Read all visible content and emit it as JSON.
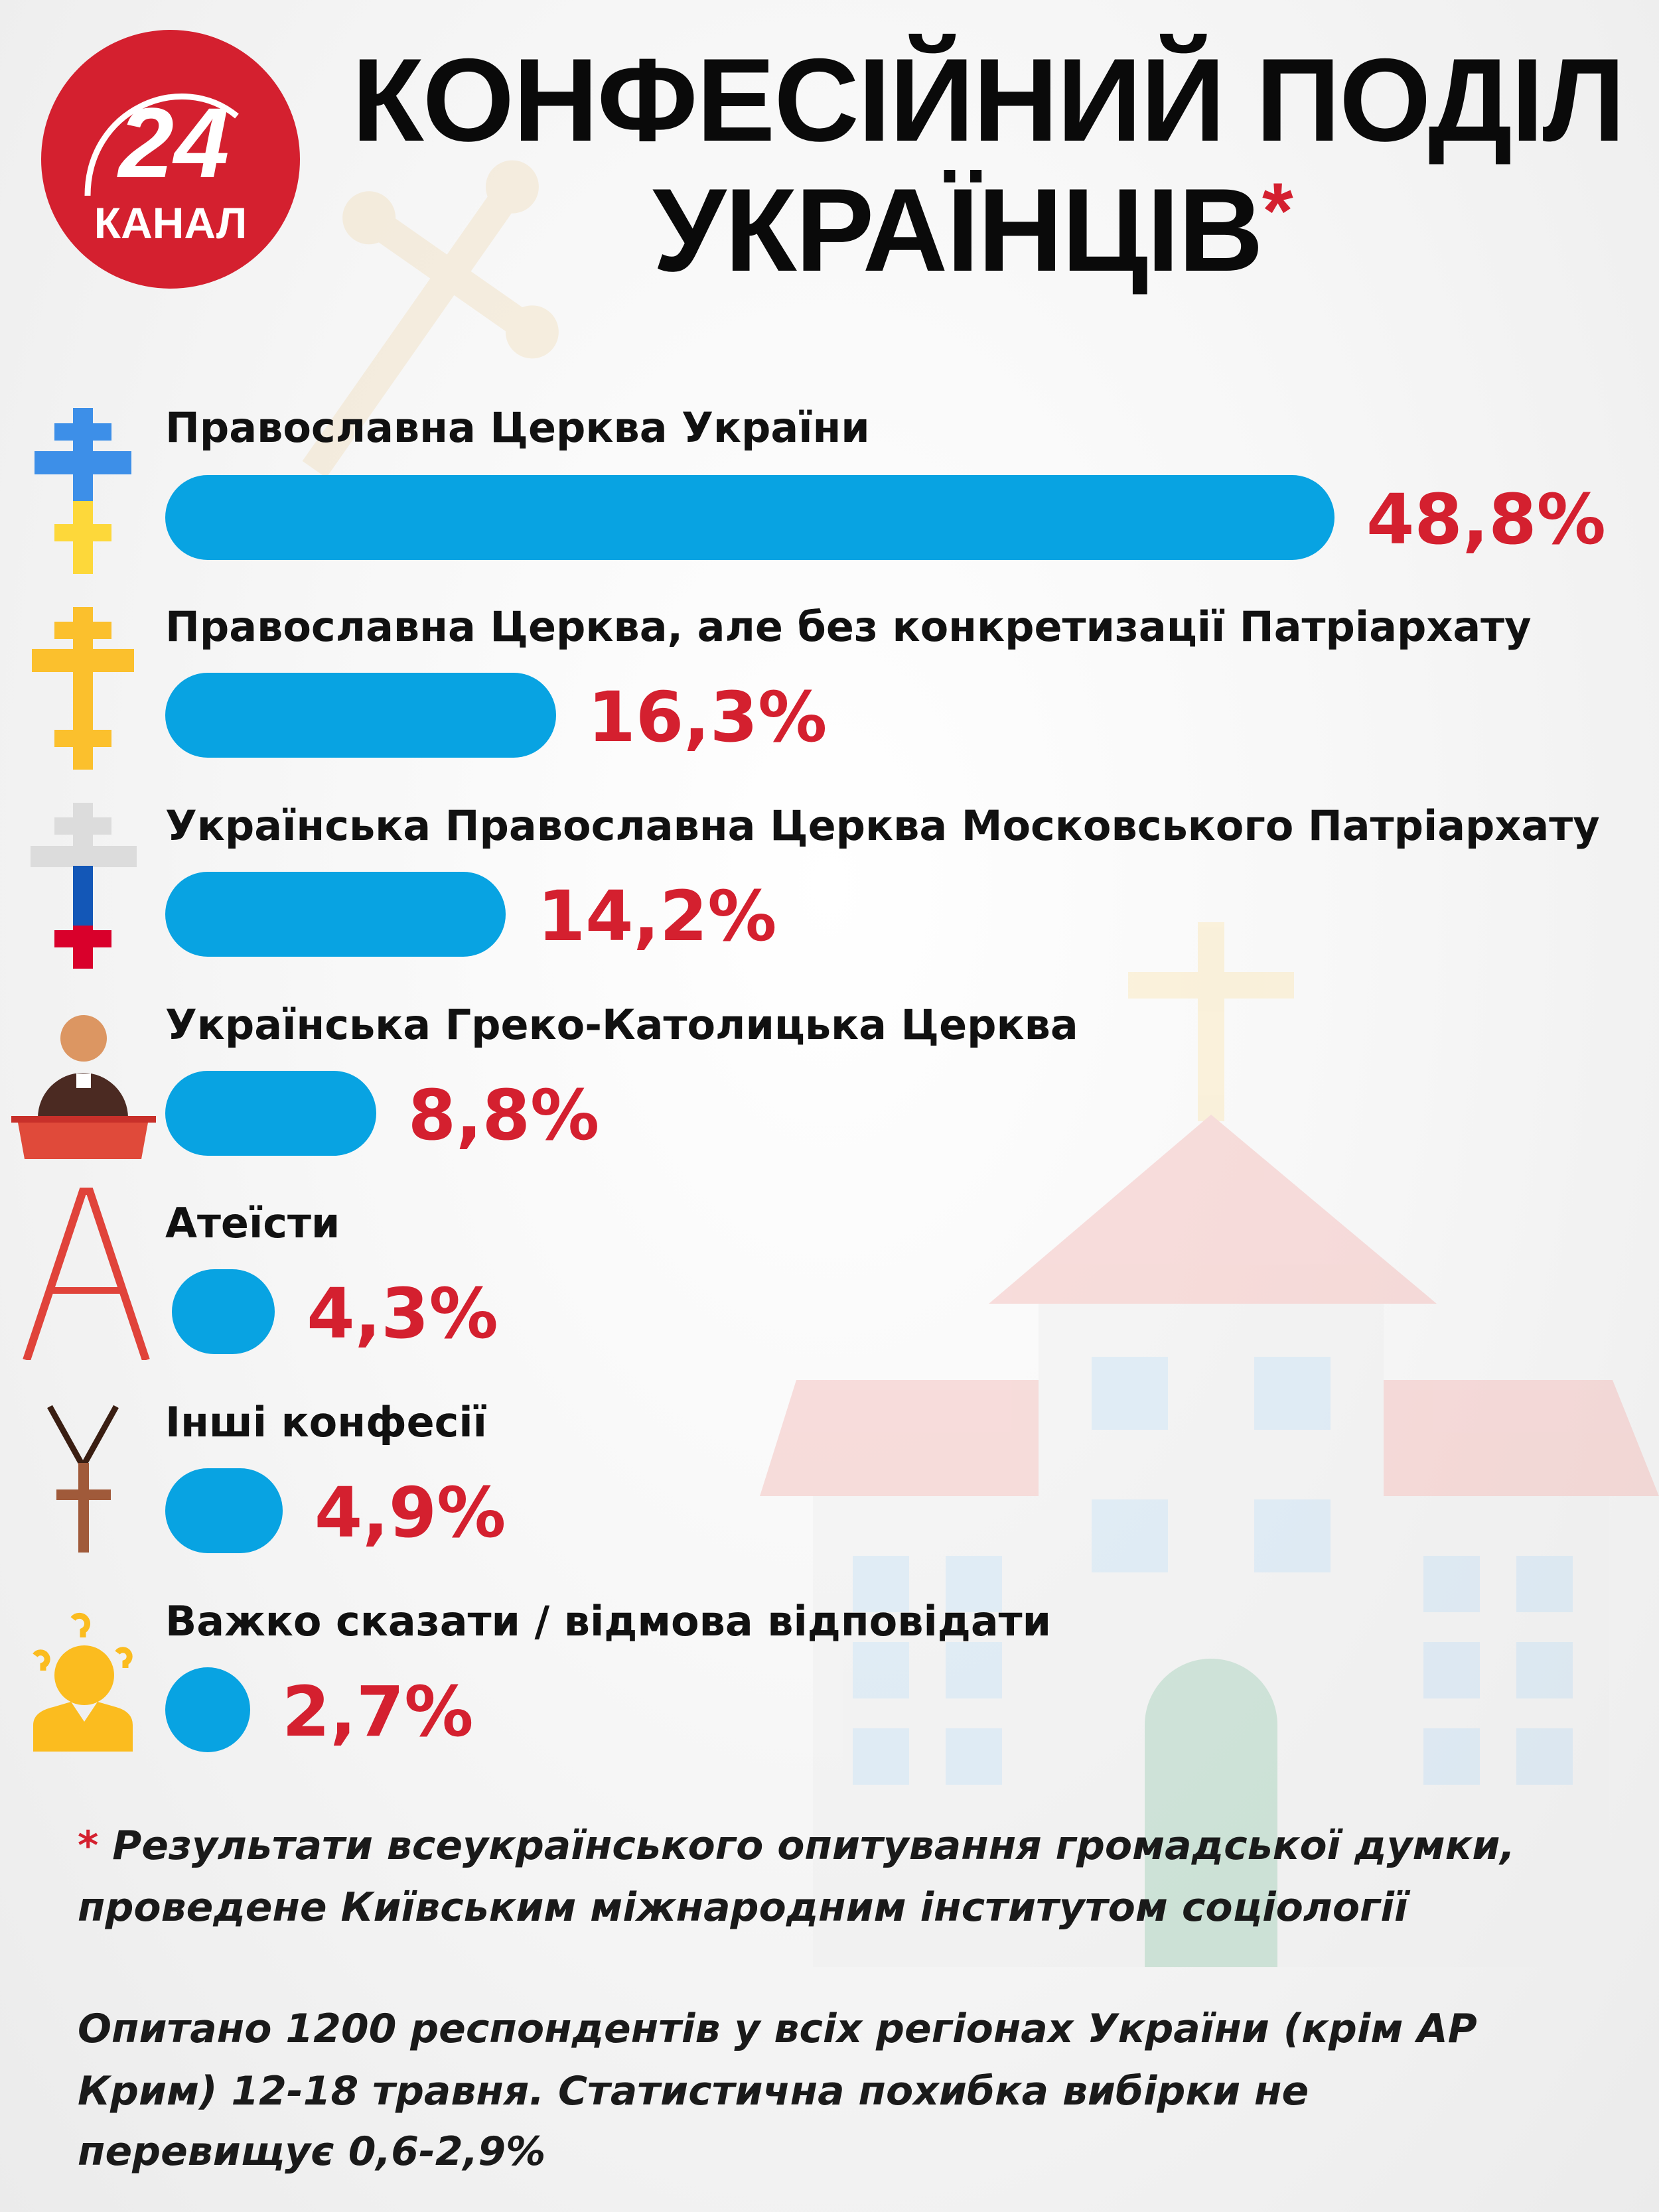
{
  "logo": {
    "number": "24",
    "text": "КАНАЛ"
  },
  "title": {
    "line1": "КОНФЕСІЙНИЙ ПОДІЛ",
    "line2": "УКРАЇНЦІВ",
    "asterisk": "*"
  },
  "colors": {
    "bar": "#08a3e2",
    "percent": "#d4202f",
    "logo": "#d4202f"
  },
  "chart_data": {
    "type": "bar",
    "orientation": "horizontal",
    "categories": [
      "Православна Церква України",
      "Православна Церква, але без конкретизації Патріархату",
      "Українська Православна Церква Московського Патріархату",
      "Українська Греко-Католицька Церква",
      "Атеїсти",
      "Інші конфесії",
      "Важко сказати / відмова відповідати"
    ],
    "values": [
      48.8,
      16.3,
      14.2,
      8.8,
      4.3,
      4.9,
      2.7
    ],
    "labels": [
      "48,8%",
      "16,3%",
      "14,2%",
      "8,8%",
      "4,3%",
      "4,9%",
      "2,7%"
    ],
    "icons": [
      "ukrainian-orthodox-cross-icon",
      "orthodox-cross-icon",
      "russian-flag-cross-icon",
      "priest-pulpit-icon",
      "atheist-a-icon",
      "pendant-cross-icon",
      "confused-person-icon"
    ]
  },
  "footnote": {
    "asterisk": "*",
    "line1": "Результати всеукраїнського опитування громадської думки,",
    "line2": "проведене Київським міжнародним інститутом соціології",
    "line3": "Опитано 1200 респондентів у всіх регіонах України (крім АР",
    "line4": "Крим) 12-18 травня. Статистична похибка вибірки не",
    "line5": "перевищує 0,6-2,9%"
  }
}
